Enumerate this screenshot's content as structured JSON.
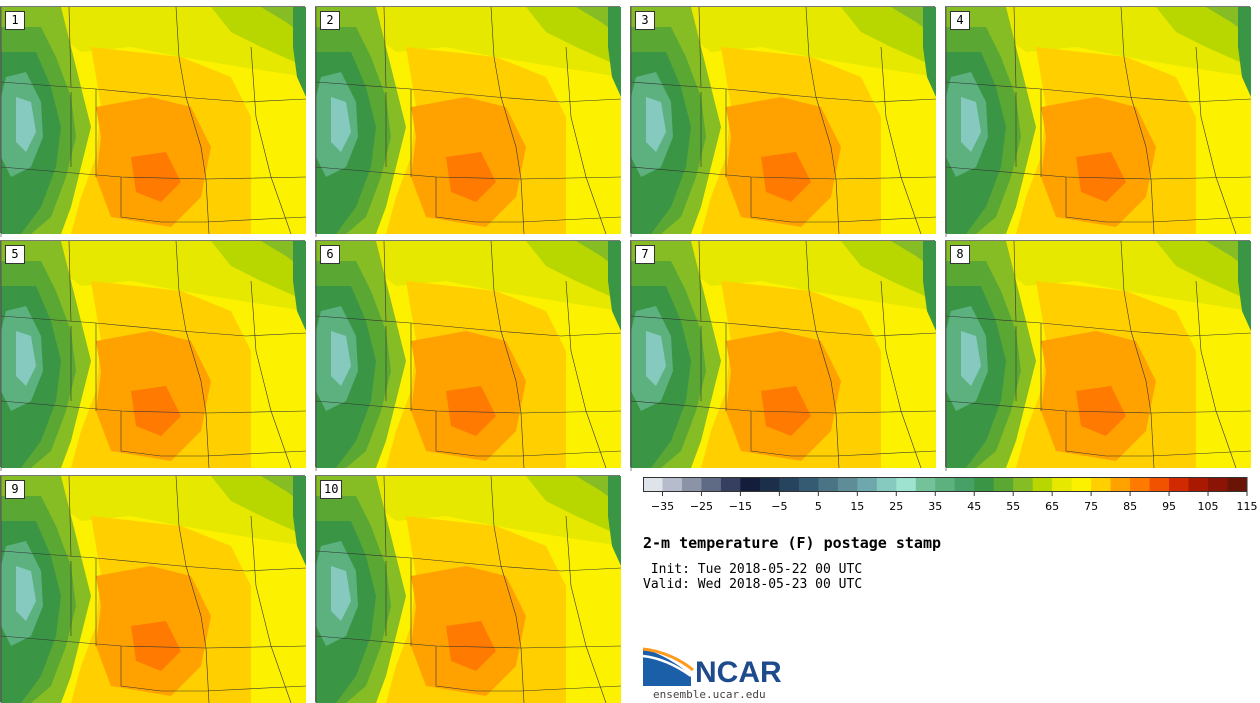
{
  "panels": [
    {
      "label": "1"
    },
    {
      "label": "2"
    },
    {
      "label": "3"
    },
    {
      "label": "4"
    },
    {
      "label": "5"
    },
    {
      "label": "6"
    },
    {
      "label": "7"
    },
    {
      "label": "8"
    },
    {
      "label": "9"
    },
    {
      "label": "10"
    }
  ],
  "colorbar": {
    "colors": [
      "#dfe3ea",
      "#b6bccb",
      "#8b93a7",
      "#5f6a85",
      "#363f5f",
      "#141d3a",
      "#1c2f4a",
      "#27445e",
      "#355b72",
      "#4a7486",
      "#5e8c97",
      "#6ea8ac",
      "#86c9bf",
      "#9ee3cf",
      "#74c29a",
      "#5cb17f",
      "#47a166",
      "#3a9545",
      "#5aa833",
      "#86bd24",
      "#b8d600",
      "#e6e800",
      "#fcf200",
      "#ffcf00",
      "#ffa200",
      "#ff7a00",
      "#f05200",
      "#d12a00",
      "#a91800",
      "#8a1405",
      "#6a1405"
    ],
    "tick_labels": [
      "−35",
      "−25",
      "−15",
      "−5",
      "5",
      "15",
      "25",
      "35",
      "45",
      "55",
      "65",
      "75",
      "85",
      "95",
      "105",
      "115"
    ]
  },
  "title": "2-m temperature (F) postage stamp",
  "init_line": " Init: Tue 2018-05-22 00 UTC",
  "valid_line": "Valid: Wed 2018-05-23 00 UTC",
  "logo": {
    "text": "NCAR",
    "url": "ensemble.ucar.edu"
  }
}
